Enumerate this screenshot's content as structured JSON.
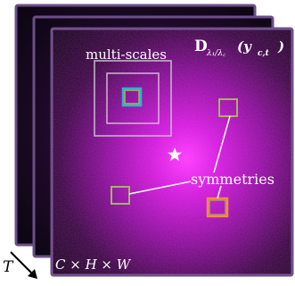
{
  "labels": {
    "title_main": "D",
    "title_sub": "λ₁/λ꜀",
    "title_args": "(y",
    "title_args_sub": "c,t",
    "title_args_close": ")",
    "multiscales": "multi-scales",
    "symmetries": "symmetries",
    "dims": "C × H × W",
    "time_axis": "T"
  },
  "colors": {
    "frame_border": "#6a4f86",
    "outer_square": "#c6bccf",
    "inner_square": "#d7b2d4",
    "cyan_box": "#26b7c9",
    "olive_box": "#a4b366",
    "orange_box": "#ff8a3d",
    "background_dark": "#09050f",
    "glow": "#d21bdc"
  }
}
